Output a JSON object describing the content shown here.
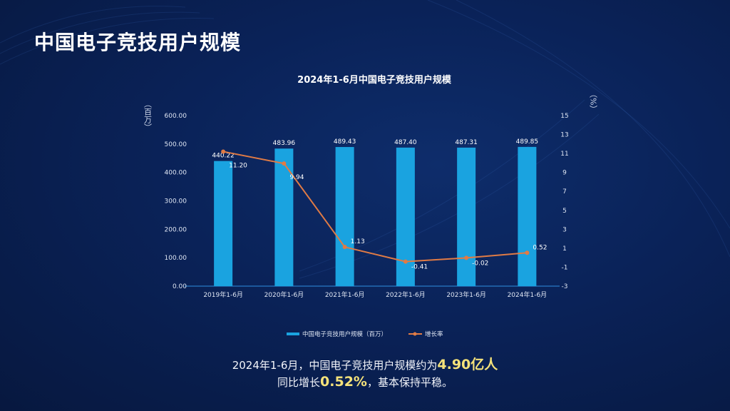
{
  "page_title": "中国电子竞技用户规模",
  "summary": {
    "line1_prefix": "2024年1-6月，中国电子竞技用户规模约为",
    "line1_highlight": "4.90亿人",
    "line2_prefix": "同比增长",
    "line2_highlight": "0.52%",
    "line2_suffix": "，基本保持平稳。"
  },
  "colors": {
    "bar": "#1aa3e0",
    "line": "#e07b45",
    "highlight": "#f5e27a"
  },
  "chart_data": {
    "type": "bar+line",
    "title": "2024年1-6月中国电子竞技用户规模",
    "categories": [
      "2019年1-6月",
      "2020年1-6月",
      "2021年1-6月",
      "2022年1-6月",
      "2023年1-6月",
      "2024年1-6月"
    ],
    "ylabel_left": "（百万）",
    "ylabel_right": "（%）",
    "ylim_left": [
      0,
      600
    ],
    "yticks_left": [
      "0.00",
      "100.00",
      "200.00",
      "300.00",
      "400.00",
      "500.00",
      "600.00"
    ],
    "ylim_right": [
      -3,
      15
    ],
    "yticks_right": [
      "-3",
      "-1",
      "1",
      "3",
      "5",
      "7",
      "9",
      "11",
      "13",
      "15"
    ],
    "grid": false,
    "legend_position": "bottom",
    "series": [
      {
        "name": "中国电子竞技用户规模（百万）",
        "type": "bar",
        "axis": "left",
        "values": [
          440.22,
          483.96,
          489.43,
          487.4,
          487.31,
          489.85
        ],
        "labels": [
          "440.22",
          "483.96",
          "489.43",
          "487.40",
          "487.31",
          "489.85"
        ]
      },
      {
        "name": "增长率",
        "type": "line",
        "axis": "right",
        "values": [
          11.2,
          9.94,
          1.13,
          -0.41,
          -0.02,
          0.52
        ],
        "labels": [
          "11.20",
          "9.94",
          "1.13",
          "-0.41",
          "-0.02",
          "0.52"
        ]
      }
    ]
  }
}
